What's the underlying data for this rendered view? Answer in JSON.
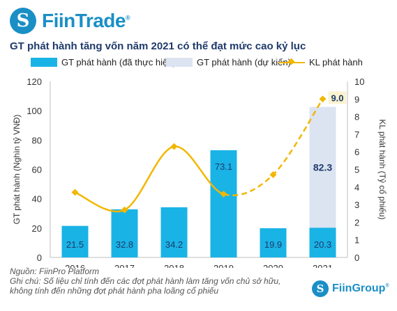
{
  "header": {
    "logo_glyph": "S",
    "logo_text": "FiinTrade",
    "logo_mark": "®",
    "title": "GT phát hành tăng vốn năm 2021 có thể đạt mức cao kỷ lục"
  },
  "footer": {
    "source": "Nguồn: FiinPro Platform",
    "note": "Ghi chú: Số liệu chỉ tính đến các đợt phát hành làm tăng vốn chủ sở hữu, không tính đến những đợt phát hành pha loãng cổ phiếu",
    "brand_glyph": "S",
    "brand_text": "FiinGroup",
    "brand_mark": "®"
  },
  "chart_data": {
    "type": "bar",
    "title": "GT phát hành tăng vốn năm 2021 có thể đạt mức cao kỷ lục",
    "categories": [
      "2016",
      "2017",
      "2018",
      "2019",
      "2020",
      "2021"
    ],
    "series": [
      {
        "name": "GT phát hành (đã thực hiện)",
        "type": "bar",
        "axis": "left",
        "color": "#1ab3e6",
        "values": [
          21.5,
          32.8,
          34.2,
          73.1,
          19.9,
          20.3
        ],
        "labels": [
          "21.5",
          "32.8",
          "34.2",
          "73.1",
          "19.9",
          "20.3"
        ]
      },
      {
        "name": "GT phát hành (dự kiến)",
        "type": "bar-stacked",
        "axis": "left",
        "color": "#dce4f2",
        "values": [
          null,
          null,
          null,
          null,
          null,
          82.3
        ],
        "labels": [
          "",
          "",
          "",
          "",
          "",
          "82.3"
        ]
      },
      {
        "name": "KL phát hành",
        "type": "line",
        "axis": "right",
        "color": "#f2b700",
        "values": [
          3.7,
          2.7,
          6.3,
          3.6,
          4.7,
          9.0
        ],
        "labels": [
          "",
          "",
          "",
          "",
          "",
          "9.0"
        ],
        "dashed_from_index": 4
      }
    ],
    "ylabel": "GT phát hành (Nghìn tỷ VNĐ)",
    "y2label": "KL phát hành (Tỷ cổ phiếu)",
    "ylim": [
      0,
      120
    ],
    "y2lim": [
      0,
      10
    ],
    "yticks": [
      "0",
      "20",
      "40",
      "60",
      "80",
      "100",
      "120"
    ],
    "y2ticks": [
      "0",
      "1",
      "2",
      "3",
      "4",
      "5",
      "6",
      "7",
      "8",
      "9",
      "10"
    ],
    "legend_position": "top",
    "grid": false
  }
}
